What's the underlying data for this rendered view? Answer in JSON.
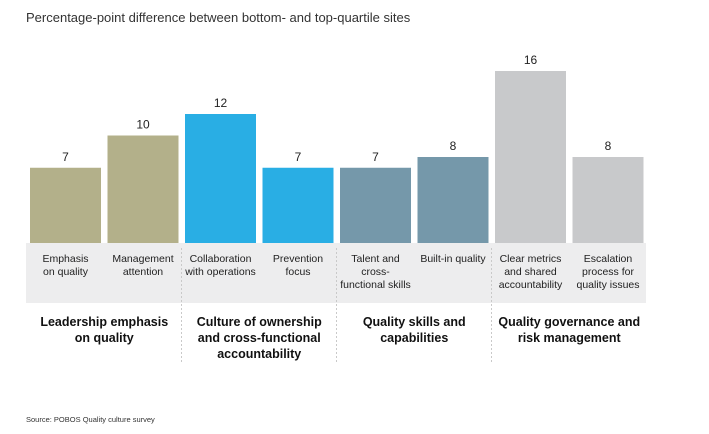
{
  "subtitle": "Percentage-point difference between bottom- and top-quartile sites",
  "source": "Source: POBOS Quality culture survey",
  "colors": {
    "olive": "#b3b08a",
    "blue": "#29aee4",
    "steel": "#7598aa",
    "gray": "#c8c9cb",
    "band": "#ededee"
  },
  "chart_data": {
    "type": "bar",
    "categories": [
      [
        "Emphasis",
        "on quality"
      ],
      [
        "Management",
        "attention"
      ],
      [
        "Collaboration",
        "with operations"
      ],
      [
        "Prevention",
        "focus"
      ],
      [
        "Talent and",
        "cross-",
        "functional skills"
      ],
      [
        "Built-in quality"
      ],
      [
        "Clear metrics",
        "and shared",
        "accountability"
      ],
      [
        "Escalation",
        "process for",
        "quality issues"
      ]
    ],
    "values": [
      7,
      10,
      12,
      7,
      7,
      8,
      16,
      8
    ],
    "bar_colors": [
      "olive",
      "olive",
      "blue",
      "blue",
      "steel",
      "steel",
      "gray",
      "gray"
    ],
    "groups": [
      {
        "label": [
          "Leadership emphasis",
          "on quality"
        ],
        "bars": [
          0,
          1
        ]
      },
      {
        "label": [
          "Culture of ownership",
          "and cross-functional",
          "accountability"
        ],
        "bars": [
          2,
          3
        ]
      },
      {
        "label": [
          "Quality skills and",
          "capabilities"
        ],
        "bars": [
          4,
          5
        ]
      },
      {
        "label": [
          "Quality governance and",
          "risk management"
        ],
        "bars": [
          6,
          7
        ]
      }
    ],
    "ylim": [
      0,
      16
    ]
  }
}
